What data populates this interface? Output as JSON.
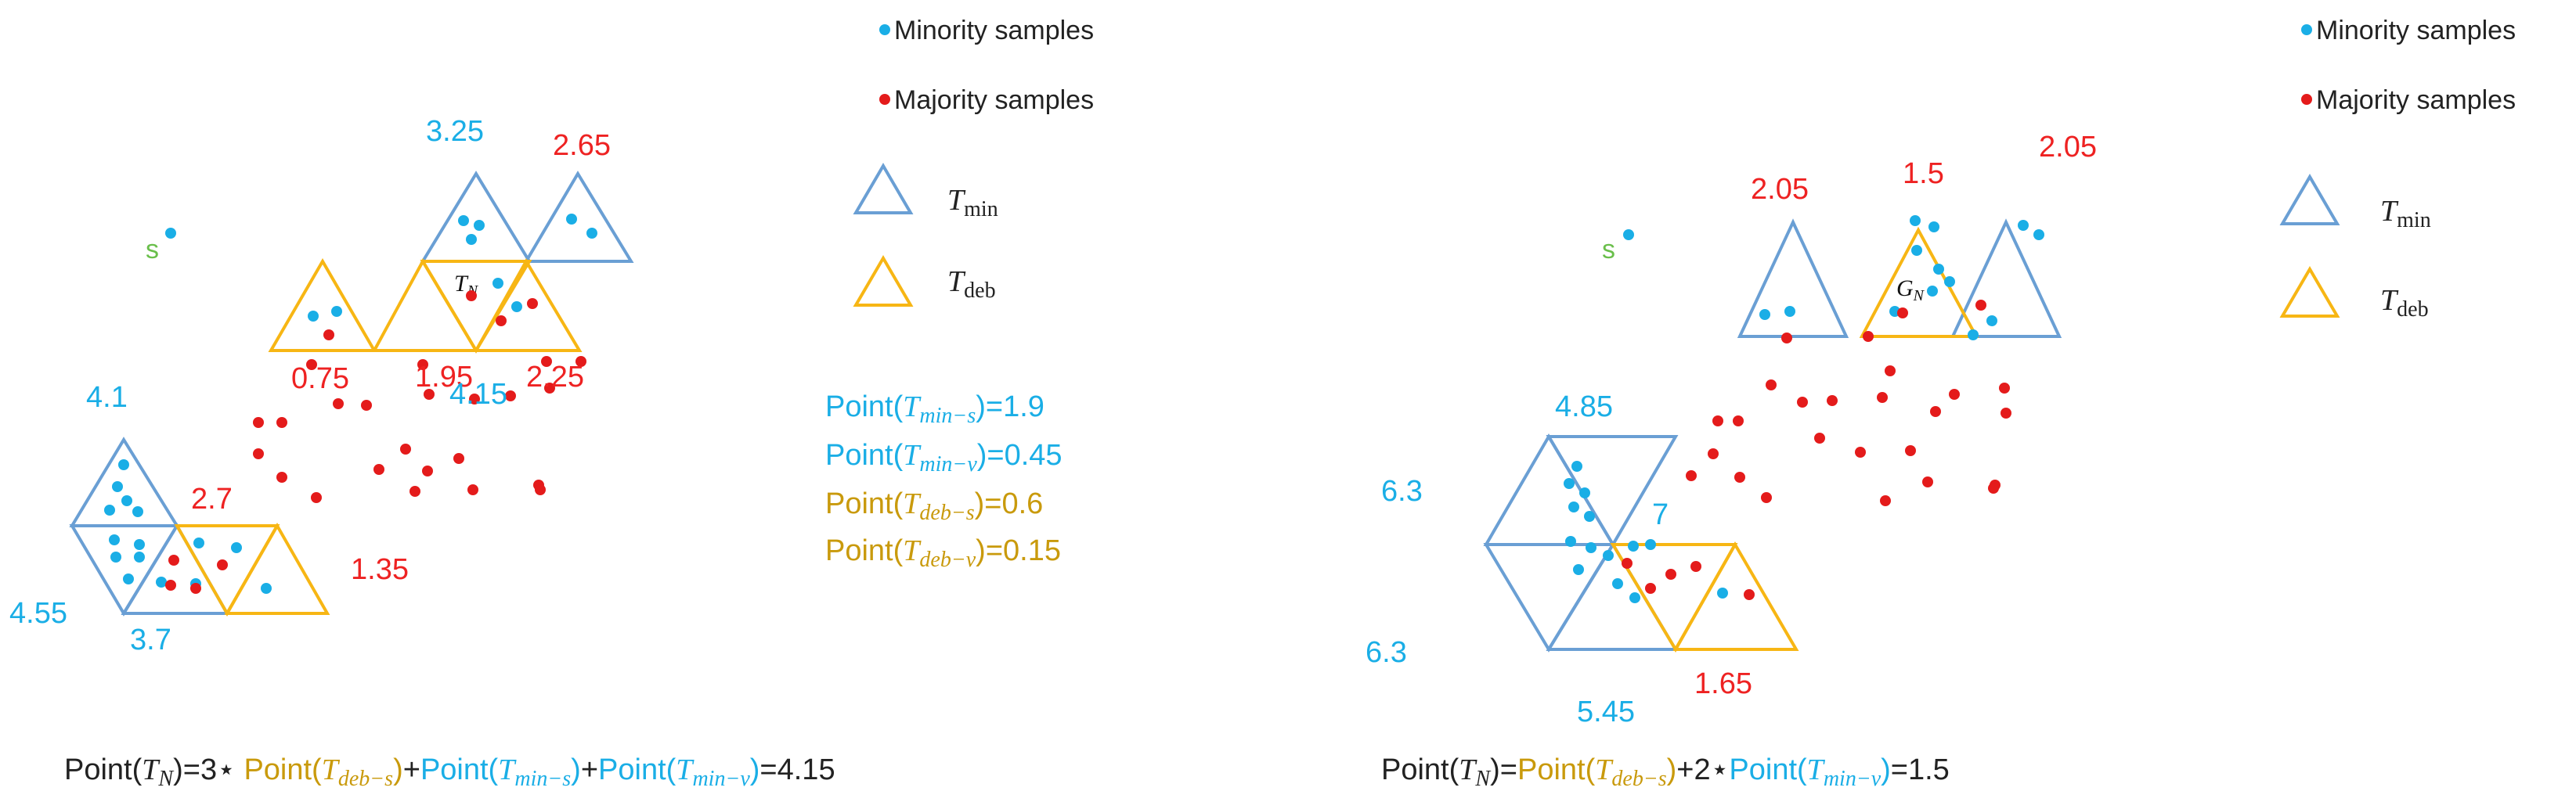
{
  "colors": {
    "minority": "#1aaee6",
    "majority": "#e41b1b",
    "tmin_stroke": "#6a9fd4",
    "tdeb_stroke": "#f7b614",
    "label_blue": "#1aaee6",
    "label_red": "#ee2222",
    "label_gold": "#c99a0c",
    "s_label": "#6abf4b",
    "text": "#222222"
  },
  "legend": {
    "minority": "Minority samples",
    "majority": "Majority samples",
    "tmin_T": "T",
    "tmin_sub": "min",
    "tdeb_T": "T",
    "tdeb_sub": "deb"
  },
  "left": {
    "s_label": "s",
    "tn_T": "T",
    "tn_sub": "N",
    "scores": {
      "top_blue": "3.25",
      "top_red": "2.65",
      "red_075": "0.75",
      "red_195": "1.95",
      "red_225": "2.25",
      "blue_415": "4.15",
      "blue_41": "4.1",
      "red_27": "2.7",
      "red_135": "1.35",
      "blue_455": "4.55",
      "blue_37": "3.7"
    },
    "points": {
      "p1_label": "Point(",
      "p1_T": "T",
      "p1_sub": "min−s",
      "p1_val": ")=1.9",
      "p2_label": "Point(",
      "p2_T": "T",
      "p2_sub": "min−v",
      "p2_val": ")=0.45",
      "p3_label": "Point(",
      "p3_T": "T",
      "p3_sub": "deb−s",
      "p3_val": ")=0.6",
      "p4_label": "Point(",
      "p4_T": "T",
      "p4_sub": "deb−v",
      "p4_val": ")=0.15"
    },
    "formula": {
      "a": "Point(",
      "b_T": "T",
      "b_sub": "N",
      "c": ")=3⋆ ",
      "d": "Point(",
      "e_T": "T",
      "e_sub": "deb−s",
      "f": ")",
      "g": "+",
      "h": "Point(",
      "i_T": "T",
      "i_sub": "min−s",
      "j": ")",
      "k": "+",
      "l": "Point(",
      "m_T": "T",
      "m_sub": "min−v",
      "n": ")",
      "o": "=4.15"
    }
  },
  "right": {
    "s_label": "s",
    "gn_T": "G",
    "gn_sub": "N",
    "scores": {
      "red_205a": "2.05",
      "red_15": "1.5",
      "red_205b": "2.05",
      "blue_485": "4.85",
      "blue_63a": "6.3",
      "blue_7": "7",
      "blue_63b": "6.3",
      "blue_545": "5.45",
      "red_165": "1.65"
    },
    "formula": {
      "a": "Point(",
      "b_T": "T",
      "b_sub": "N",
      "c": ")=",
      "d": "Point(",
      "e_T": "T",
      "e_sub": "deb−s",
      "f": ")",
      "g": "+2⋆",
      "h": "Point(",
      "i_T": "T",
      "i_sub": "min−v",
      "j": ")",
      "k": "=1.5"
    }
  }
}
